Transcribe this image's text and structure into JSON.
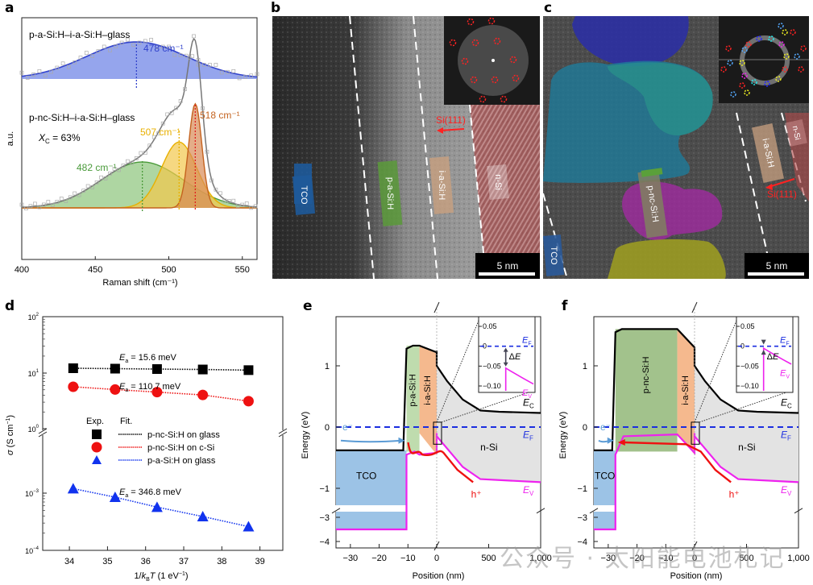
{
  "panels": {
    "a": "a",
    "b": "b",
    "c": "c",
    "d": "d",
    "e": "e",
    "f": "f"
  },
  "watermark": "公众号 · 太阳能电池札记",
  "chart_data": [
    {
      "id": "a",
      "type": "line",
      "title": "",
      "xlabel": "Raman shift (cm⁻¹)",
      "ylabel": "a.u.",
      "xlim": [
        400,
        560
      ],
      "xticks": [
        400,
        450,
        500,
        550
      ],
      "grid": false,
      "series": [
        {
          "name": "p-a-Si:H–i-a-Si:H–glass",
          "peak_center": 478,
          "peak_label": "478 cm⁻¹",
          "color": "#3344cc",
          "fill": "#7b8ee8",
          "width": 34
        },
        {
          "name": "p-nc-Si:H–i-a-Si:H–glass",
          "fit_color": "#777777",
          "components": [
            {
              "center": 482,
              "label": "482 cm⁻¹",
              "color": "#4a9a3a",
              "fill": "#8cc47a",
              "height": 0.3,
              "width": 28
            },
            {
              "center": 507,
              "label": "507 cm⁻¹",
              "color": "#e8b000",
              "fill": "#f2c84b",
              "height": 0.43,
              "width": 12
            },
            {
              "center": 518,
              "label": "518 cm⁻¹",
              "color": "#c4621e",
              "fill": "#d98a55",
              "height": 0.68,
              "width": 4.5
            }
          ],
          "annotation": "X_C = 63%"
        }
      ]
    },
    {
      "id": "d",
      "type": "scatter",
      "xlabel": "1/k_BT (1 eV⁻¹)",
      "ylabel": "σ (S cm⁻¹)",
      "xlim": [
        33.3,
        39.6
      ],
      "xticks": [
        34,
        35,
        36,
        37,
        38,
        39
      ],
      "yticks_upper": [
        "10²",
        "10¹",
        "10⁰"
      ],
      "yticks_lower": [
        "10⁻³",
        "10⁻⁴"
      ],
      "legend_header": [
        "Exp.",
        "Fit."
      ],
      "legend_position": "center",
      "series": [
        {
          "name": "p-nc-Si:H on glass",
          "marker": "square",
          "color": "#000000",
          "x": [
            34.1,
            35.2,
            36.3,
            37.5,
            38.7
          ],
          "y": [
            12.0,
            11.8,
            11.6,
            11.4,
            11.1
          ],
          "annotation": "Ea = 15.6 meV"
        },
        {
          "name": "p-nc-Si:H on c-Si",
          "marker": "circle",
          "color": "#ee1111",
          "x": [
            34.1,
            35.2,
            36.3,
            37.5,
            38.7
          ],
          "y": [
            5.6,
            5.0,
            4.5,
            4.0,
            3.1
          ],
          "annotation": "Ea = 110.7 meV"
        },
        {
          "name": "p-a-Si:H on glass",
          "marker": "triangle",
          "color": "#1133ee",
          "x": [
            34.1,
            35.2,
            36.3,
            37.5,
            38.7
          ],
          "y": [
            0.0012,
            0.00085,
            0.00057,
            0.00039,
            0.00026
          ],
          "annotation": "Ea = 346.8 meV"
        }
      ]
    },
    {
      "id": "e",
      "type": "line",
      "xlabel": "Position (nm)",
      "ylabel": "Energy (eV)",
      "xticks": [
        "-30",
        "-20",
        "-10",
        "0",
        "500",
        "1,000"
      ],
      "yticks": [
        "1",
        "0",
        "-1",
        "-3",
        "-4"
      ],
      "layers": [
        "TCO",
        "p-a-Si:H",
        "i-a-Si:H",
        "n-Si"
      ],
      "labels": {
        "Ec": "E_C",
        "Ef": "E_F",
        "Ev": "E_V",
        "electron": "e⁻",
        "hole": "h⁺"
      },
      "inset": {
        "yticks": [
          "0.05",
          "0",
          "-0.05",
          "-0.10"
        ],
        "delta_label": "ΔE",
        "ef": "E_F",
        "ev": "E_V",
        "valence_top": -0.055
      }
    },
    {
      "id": "f",
      "type": "line",
      "xlabel": "Position (nm)",
      "ylabel": "Energy (eV)",
      "xticks": [
        "-30",
        "-20",
        "-10",
        "0",
        "500",
        "1,000"
      ],
      "yticks": [
        "1",
        "0",
        "-1",
        "-3",
        "-4"
      ],
      "layers": [
        "TCO",
        "p-nc-Si:H",
        "i-a-Si:H",
        "n-Si"
      ],
      "labels": {
        "Ec": "E_C",
        "Ef": "E_F",
        "Ev": "E_V",
        "electron": "e⁻",
        "hole": "h⁺"
      },
      "inset": {
        "yticks": [
          "0.05",
          "0",
          "-0.05",
          "-0.10"
        ],
        "delta_label": "ΔE",
        "ef": "E_F",
        "ev": "E_V",
        "valence_top": -0.005
      }
    }
  ],
  "tem_b": {
    "labels": [
      "TCO",
      "p-a-Si:H",
      "i-a-Si:H",
      "n-Si"
    ],
    "direction": "Si(111)",
    "scale_bar": "5 nm"
  },
  "tem_c": {
    "labels": [
      "TCO",
      "p-nc-Si:H",
      "i-a-Si:H",
      "n-Si"
    ],
    "direction": "Si(111)",
    "scale_bar": "5 nm"
  }
}
